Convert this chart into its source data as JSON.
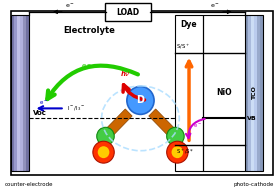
{
  "bg_color": "#ffffff",
  "load_label": "LOAD",
  "electrolyte_label": "Electrolyte",
  "dye_label": "Dye",
  "nio_label": "NiO",
  "tco_label": "TCO",
  "vb_label": "VB",
  "voc_label": "Voc",
  "counter_label": "counter-electrode",
  "photo_label": "photo-cathode",
  "D_label": "D",
  "left_electrode_colors": [
    "#8888bb",
    "#aaaadd",
    "#ccccee",
    "#aaaadd",
    "#8888bb"
  ],
  "right_electrode_colors": [
    "#99aacc",
    "#aabbdd",
    "#ccddf0",
    "#aabbdd",
    "#99aacc"
  ],
  "green_arrow_color": "#22cc00",
  "red_arrow_color": "#dd0000",
  "orange_arrow_color": "#ff6600",
  "magenta_arrow_color": "#cc00cc",
  "blue_arrow_color": "#0000cc",
  "dye_blue": "#4499ff",
  "arm_orange": "#cc6600",
  "green_circle": "#44cc44",
  "fireball_red": "#ff3300",
  "fireball_yellow": "#ffcc00"
}
